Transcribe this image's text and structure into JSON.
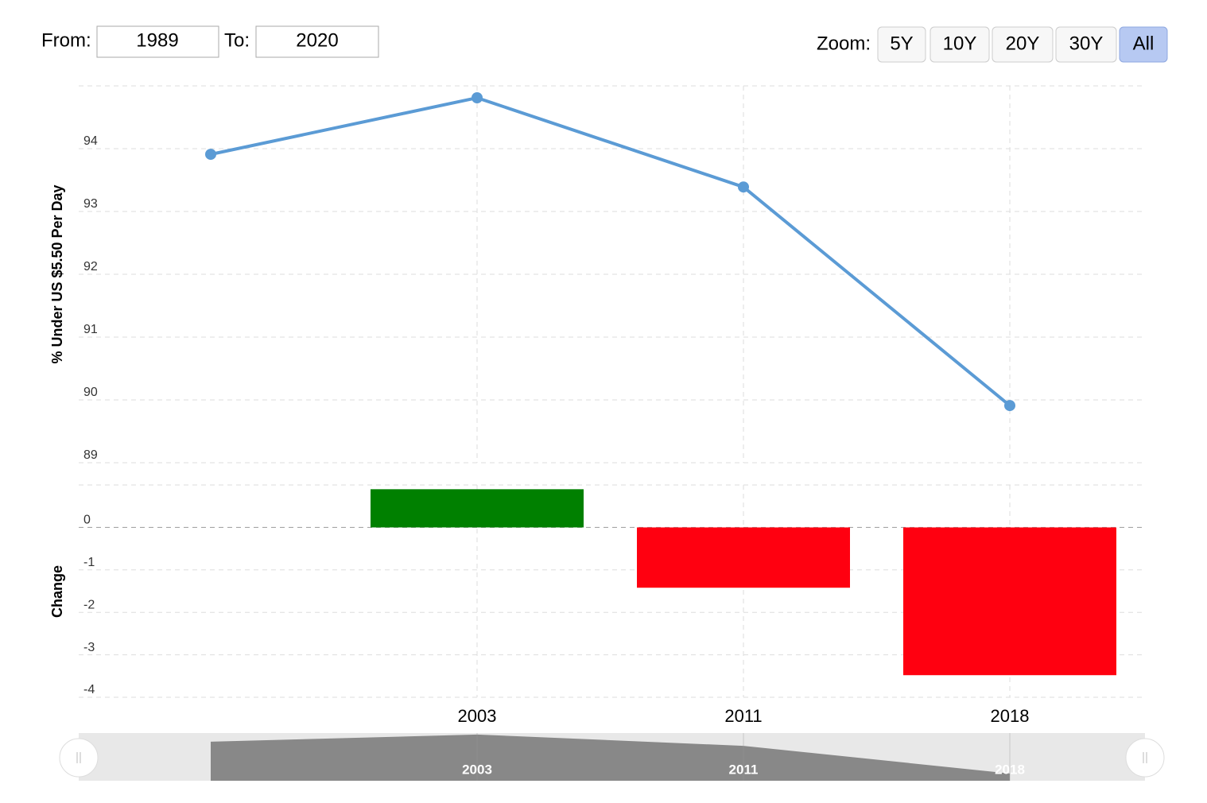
{
  "controls": {
    "from_label": "From:",
    "from": "1989",
    "to_label": "To:",
    "to": "2020",
    "zoom_label": "Zoom:",
    "zoom_buttons": [
      "5Y",
      "10Y",
      "20Y",
      "30Y",
      "All"
    ],
    "active_zoom": 4
  },
  "chart_data": [
    {
      "type": "line",
      "y_label": "% Under US $5.50 Per Day",
      "categories": [
        null,
        "2003",
        "2011",
        "2018"
      ],
      "values": [
        93.91,
        94.81,
        93.39,
        89.91
      ],
      "color": "#5b9bd5",
      "ylim": [
        89,
        95
      ],
      "yticks": [
        89,
        90,
        91,
        92,
        93,
        94
      ],
      "grid": true
    },
    {
      "type": "bar",
      "y_label": "Change",
      "categories": [
        null,
        "2003",
        "2011",
        "2018"
      ],
      "values": [
        null,
        0.9,
        -1.42,
        -3.48
      ],
      "positive_color": "#008000",
      "negative_color": "#ff0010",
      "ylim": [
        -4,
        1
      ],
      "yticks": [
        -4,
        -3,
        -2,
        -1,
        0
      ],
      "grid": true
    }
  ]
}
